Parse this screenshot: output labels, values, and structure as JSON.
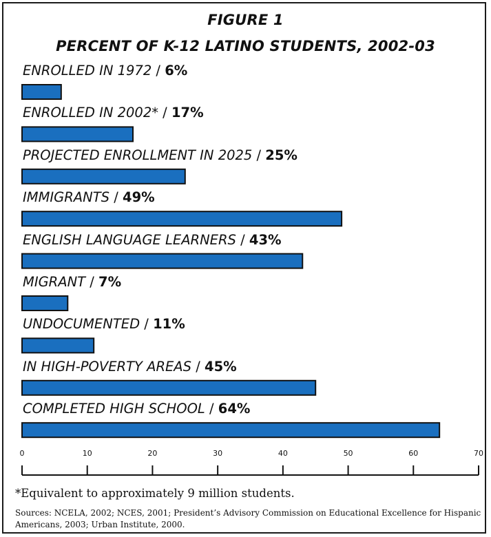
{
  "chart_data": {
    "type": "bar",
    "orientation": "horizontal",
    "title": "FIGURE 1",
    "subtitle": "PERCENT OF K-12 LATINO STUDENTS, 2002-03",
    "categories": [
      "ENROLLED IN 1972",
      "ENROLLED IN 2002*",
      "PROJECTED ENROLLMENT IN 2025",
      "IMMIGRANTS",
      "ENGLISH LANGUAGE LEARNERS",
      "MIGRANT",
      "UNDOCUMENTED",
      "IN HIGH-POVERTY AREAS",
      "COMPLETED HIGH SCHOOL"
    ],
    "values": [
      6,
      17,
      25,
      49,
      43,
      7,
      11,
      45,
      64
    ],
    "value_labels": [
      "6%",
      "17%",
      "25%",
      "49%",
      "43%",
      "7%",
      "11%",
      "45%",
      "64%"
    ],
    "separator": " / ",
    "xlim": [
      0,
      70
    ],
    "xticks": [
      0,
      10,
      20,
      30,
      40,
      50,
      60,
      70
    ],
    "grid": false,
    "legend": "none",
    "bar_color": "#1a6fbf",
    "bar_edge_color": "#111111"
  },
  "footnote": "*Equivalent to approximately 9 million students.",
  "sources": "Sources: NCELA, 2002; NCES, 2001; President’s Advisory Commission on Educational Excellence for Hispanic Americans, 2003; Urban Institute, 2000."
}
